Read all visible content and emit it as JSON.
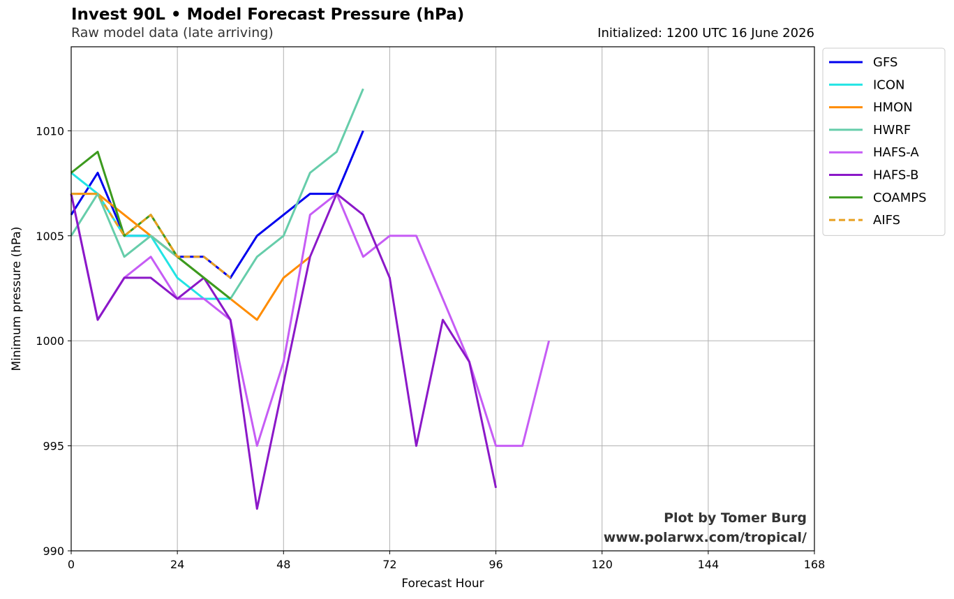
{
  "title": "Invest 90L • Model Forecast Pressure (hPa)",
  "subtitle": "Raw model data (late arriving)",
  "initialized": "Initialized: 1200 UTC 16 June 2026",
  "credit_line1": "Plot by Tomer Burg",
  "credit_line2": "www.polarwx.com/tropical/",
  "chart_data": {
    "type": "line",
    "xlabel": "Forecast Hour",
    "ylabel": "Minimum pressure (hPa)",
    "xlim": [
      0,
      168
    ],
    "ylim": [
      990,
      1014
    ],
    "xticks": [
      0,
      24,
      48,
      72,
      96,
      120,
      144,
      168
    ],
    "yticks": [
      990,
      995,
      1000,
      1005,
      1010
    ],
    "grid": true,
    "legend_placement": "outside upper right",
    "series": [
      {
        "name": "GFS",
        "color": "#0000ee",
        "dashed": false,
        "x": [
          0,
          6,
          12,
          18,
          24,
          30,
          36,
          42,
          48,
          54,
          60,
          66
        ],
        "y": [
          1006,
          1008,
          1005,
          1005,
          1004,
          1004,
          1003,
          1005,
          1006,
          1007,
          1007,
          1010
        ]
      },
      {
        "name": "ICON",
        "color": "#22e4e4",
        "dashed": false,
        "x": [
          0,
          6,
          12,
          18,
          24,
          30,
          36
        ],
        "y": [
          1008,
          1007,
          1005,
          1005,
          1003,
          1002,
          1002
        ]
      },
      {
        "name": "HMON",
        "color": "#ff8c00",
        "dashed": false,
        "x": [
          0,
          6,
          12,
          18,
          24,
          30,
          36,
          42,
          48,
          54
        ],
        "y": [
          1007,
          1007,
          1006,
          1005,
          1004,
          1003,
          1002,
          1001,
          1003,
          1004
        ]
      },
      {
        "name": "HWRF",
        "color": "#66cdaa",
        "dashed": false,
        "x": [
          0,
          6,
          12,
          18,
          24,
          30,
          36,
          42,
          48,
          54,
          60,
          66
        ],
        "y": [
          1005,
          1007,
          1004,
          1005,
          1004,
          1003,
          1002,
          1004,
          1005,
          1008,
          1009,
          1012
        ]
      },
      {
        "name": "HAFS-A",
        "color": "#c65cf5",
        "dashed": false,
        "x": [
          0,
          6,
          12,
          18,
          24,
          30,
          36,
          42,
          48,
          54,
          60,
          66,
          72,
          78,
          84,
          90,
          96,
          102,
          108
        ],
        "y": [
          1007,
          1001,
          1003,
          1004,
          1002,
          1002,
          1001,
          995,
          999,
          1006,
          1007,
          1004,
          1005,
          1005,
          1002,
          999,
          995,
          995,
          1000
        ]
      },
      {
        "name": "HAFS-B",
        "color": "#8b18c8",
        "dashed": false,
        "x": [
          0,
          6,
          12,
          18,
          24,
          30,
          36,
          42,
          48,
          54,
          60,
          66,
          72,
          78,
          84,
          90,
          96
        ],
        "y": [
          1007,
          1001,
          1003,
          1003,
          1002,
          1003,
          1001,
          992,
          998,
          1004,
          1007,
          1006,
          1003,
          995,
          1001,
          999,
          993
        ]
      },
      {
        "name": "COAMPS",
        "color": "#3c9a1e",
        "dashed": false,
        "x": [
          0,
          6,
          12,
          18,
          24,
          30,
          36
        ],
        "y": [
          1008,
          1009,
          1005,
          1006,
          1004,
          1003,
          1002
        ]
      },
      {
        "name": "AIFS",
        "color": "#e8a020",
        "dashed": true,
        "x": [
          0,
          6,
          12,
          18,
          24,
          30,
          36
        ],
        "y": [
          1007,
          1007,
          1005,
          1006,
          1004,
          1004,
          1003
        ]
      }
    ]
  }
}
